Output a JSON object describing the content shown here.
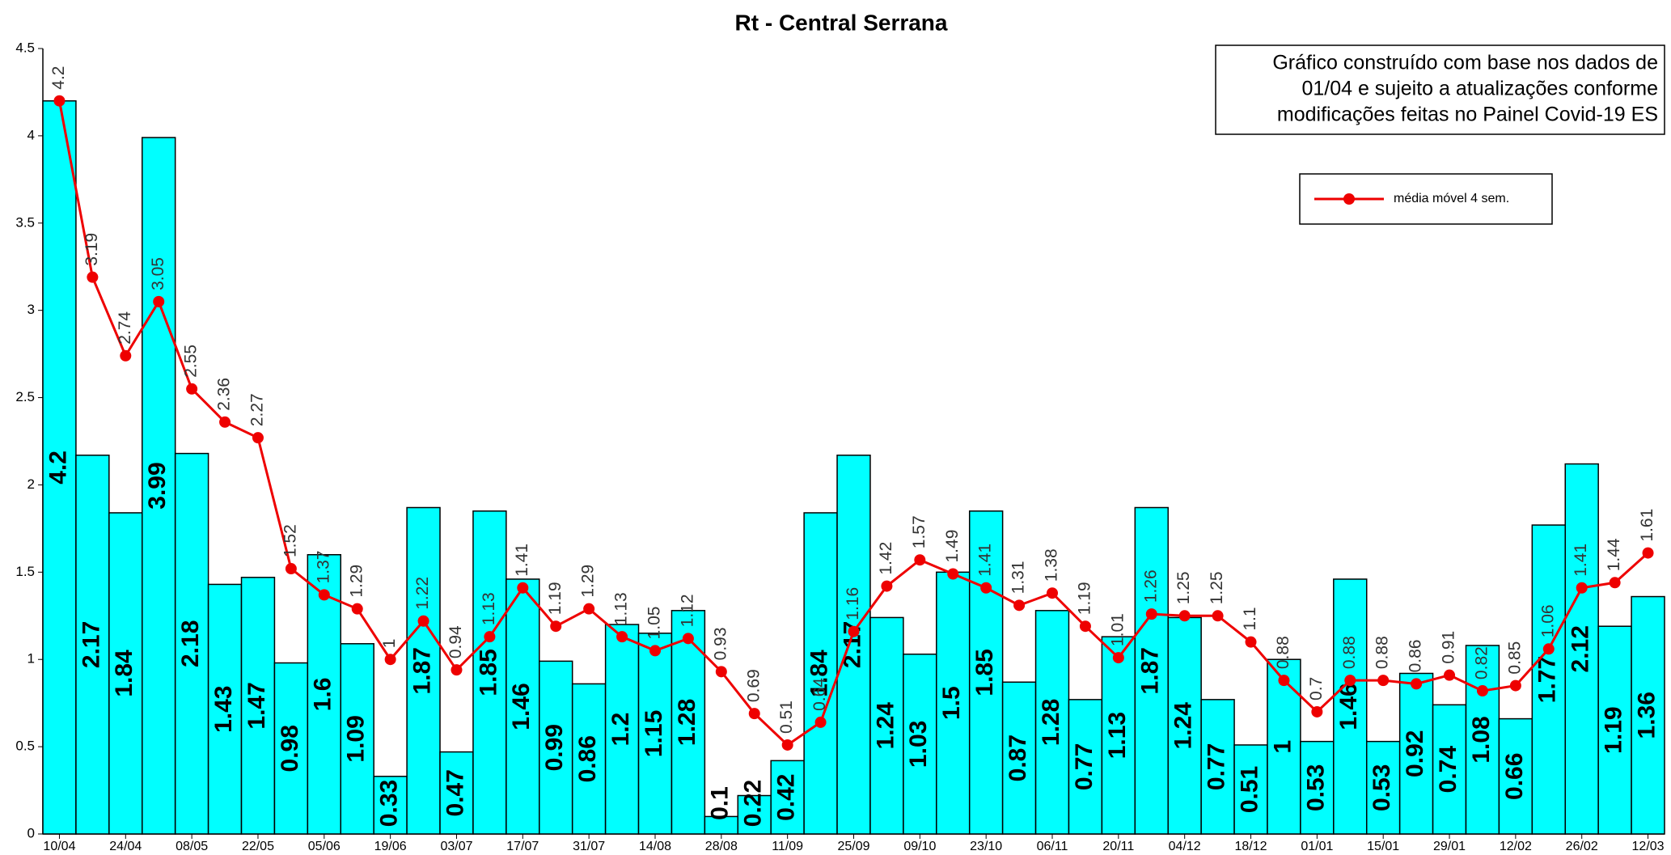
{
  "chart_data": {
    "type": "bar",
    "title": "Rt - Central Serrana",
    "annotation": [
      "Gráfico construído com base nos dados de",
      "01/04 e sujeito a atualizações conforme",
      "modificações feitas no Painel Covid-19 ES"
    ],
    "categories": [
      "10/04",
      null,
      "24/04",
      null,
      "08/05",
      null,
      "22/05",
      null,
      "05/06",
      null,
      "19/06",
      null,
      "03/07",
      null,
      "17/07",
      null,
      "31/07",
      null,
      "14/08",
      null,
      "28/08",
      null,
      "11/09",
      null,
      "25/09",
      null,
      "09/10",
      null,
      "23/10",
      null,
      "06/11",
      null,
      "20/11",
      null,
      "04/12",
      null,
      "18/12",
      null,
      "01/01",
      null,
      "15/01",
      null,
      "29/01",
      null,
      "12/02",
      null,
      "26/02",
      null,
      "12/03"
    ],
    "bars": {
      "color": "#00ffff",
      "values": [
        4.2,
        2.17,
        1.84,
        3.99,
        2.18,
        1.43,
        1.47,
        0.98,
        1.6,
        1.09,
        0.33,
        1.87,
        0.47,
        1.85,
        1.46,
        0.99,
        0.86,
        1.2,
        1.15,
        1.28,
        0.1,
        0.22,
        0.42,
        1.84,
        2.17,
        1.24,
        1.03,
        1.5,
        1.85,
        0.87,
        1.28,
        0.77,
        1.13,
        1.87,
        1.24,
        0.77,
        0.51,
        1,
        0.53,
        1.46,
        0.53,
        0.92,
        0.74,
        1.08,
        0.66,
        1.77,
        2.12,
        1.19,
        1.36
      ]
    },
    "series": [
      {
        "name": "média móvel 4 sem.",
        "color": "#ee0000",
        "values": [
          4.2,
          3.19,
          2.74,
          3.05,
          2.55,
          2.36,
          2.27,
          1.52,
          1.37,
          1.29,
          1,
          1.22,
          0.94,
          1.13,
          1.41,
          1.19,
          1.29,
          1.13,
          1.05,
          1.12,
          0.93,
          0.69,
          0.51,
          0.64,
          1.16,
          1.42,
          1.57,
          1.49,
          1.41,
          1.31,
          1.38,
          1.19,
          1.01,
          1.26,
          1.25,
          1.25,
          1.1,
          0.88,
          0.7,
          0.88,
          0.88,
          0.86,
          0.91,
          0.82,
          0.85,
          1.06,
          1.41,
          1.44,
          1.61
        ]
      }
    ],
    "ylim": [
      0,
      4.5
    ],
    "yticks": [
      0,
      0.5,
      1,
      1.5,
      2,
      2.5,
      3,
      3.5,
      4,
      4.5
    ],
    "grid": false
  }
}
